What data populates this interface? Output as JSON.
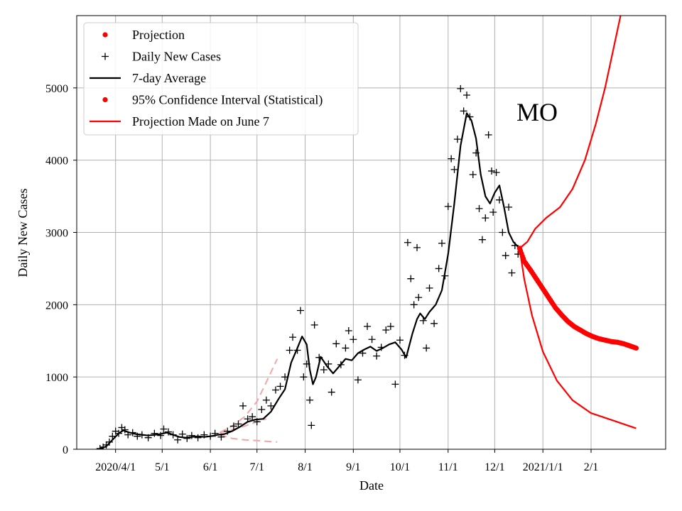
{
  "chart_data": {
    "type": "line",
    "title": "",
    "annotation": "MO",
    "xlabel": "Date",
    "ylabel": "Daily New Cases",
    "x_ticks": [
      {
        "date": "2020-04-01",
        "label": "2020/4/1"
      },
      {
        "date": "2020-05-01",
        "label": "5/1"
      },
      {
        "date": "2020-06-01",
        "label": "6/1"
      },
      {
        "date": "2020-07-01",
        "label": "7/1"
      },
      {
        "date": "2020-08-01",
        "label": "8/1"
      },
      {
        "date": "2020-09-01",
        "label": "9/1"
      },
      {
        "date": "2020-10-01",
        "label": "10/1"
      },
      {
        "date": "2020-11-01",
        "label": "11/1"
      },
      {
        "date": "2020-12-01",
        "label": "12/1"
      },
      {
        "date": "2021-01-01",
        "label": "2021/1/1"
      },
      {
        "date": "2021-02-01",
        "label": "2/1"
      }
    ],
    "xlim": [
      "2020-03-07",
      "2021-03-21"
    ],
    "ylim": [
      0,
      6000
    ],
    "y_ticks": [
      0,
      1000,
      2000,
      3000,
      4000,
      5000
    ],
    "grid": true,
    "legend_position": "top-left",
    "legend": [
      {
        "label": "Projection",
        "marker": "dot",
        "color": "#ff0000"
      },
      {
        "label": "Daily New Cases",
        "marker": "plus",
        "color": "#000000"
      },
      {
        "label": "7-day Average",
        "marker": "line",
        "color": "#000000"
      },
      {
        "label": "95% Confidence Interval (Statistical)",
        "marker": "dot",
        "color": "#ff0000"
      },
      {
        "label": "Projection Made on June 7",
        "marker": "line",
        "color": "#ff0000"
      }
    ],
    "series": [
      {
        "name": "Daily New Cases",
        "style": "plus",
        "color": "#000000",
        "points": [
          [
            "2020-03-22",
            10
          ],
          [
            "2020-03-24",
            30
          ],
          [
            "2020-03-26",
            60
          ],
          [
            "2020-03-28",
            100
          ],
          [
            "2020-03-30",
            180
          ],
          [
            "2020-04-01",
            250
          ],
          [
            "2020-04-03",
            220
          ],
          [
            "2020-04-05",
            300
          ],
          [
            "2020-04-07",
            270
          ],
          [
            "2020-04-09",
            200
          ],
          [
            "2020-04-12",
            230
          ],
          [
            "2020-04-15",
            180
          ],
          [
            "2020-04-18",
            200
          ],
          [
            "2020-04-22",
            160
          ],
          [
            "2020-04-26",
            220
          ],
          [
            "2020-04-30",
            190
          ],
          [
            "2020-05-02",
            280
          ],
          [
            "2020-05-05",
            240
          ],
          [
            "2020-05-08",
            200
          ],
          [
            "2020-05-11",
            130
          ],
          [
            "2020-05-14",
            210
          ],
          [
            "2020-05-17",
            150
          ],
          [
            "2020-05-20",
            190
          ],
          [
            "2020-05-24",
            160
          ],
          [
            "2020-05-28",
            200
          ],
          [
            "2020-06-01",
            180
          ],
          [
            "2020-06-04",
            220
          ],
          [
            "2020-06-08",
            170
          ],
          [
            "2020-06-12",
            250
          ],
          [
            "2020-06-16",
            320
          ],
          [
            "2020-06-19",
            350
          ],
          [
            "2020-06-22",
            600
          ],
          [
            "2020-06-25",
            420
          ],
          [
            "2020-06-28",
            450
          ],
          [
            "2020-07-01",
            380
          ],
          [
            "2020-07-04",
            550
          ],
          [
            "2020-07-07",
            680
          ],
          [
            "2020-07-10",
            600
          ],
          [
            "2020-07-13",
            820
          ],
          [
            "2020-07-16",
            870
          ],
          [
            "2020-07-19",
            1000
          ],
          [
            "2020-07-22",
            1370
          ],
          [
            "2020-07-24",
            1550
          ],
          [
            "2020-07-27",
            1370
          ],
          [
            "2020-07-29",
            1920
          ],
          [
            "2020-07-31",
            1000
          ],
          [
            "2020-08-02",
            1180
          ],
          [
            "2020-08-04",
            680
          ],
          [
            "2020-08-05",
            330
          ],
          [
            "2020-08-07",
            1720
          ],
          [
            "2020-08-10",
            1270
          ],
          [
            "2020-08-13",
            1100
          ],
          [
            "2020-08-16",
            1180
          ],
          [
            "2020-08-18",
            790
          ],
          [
            "2020-08-21",
            1460
          ],
          [
            "2020-08-24",
            1170
          ],
          [
            "2020-08-27",
            1400
          ],
          [
            "2020-08-29",
            1640
          ],
          [
            "2020-09-01",
            1520
          ],
          [
            "2020-09-04",
            960
          ],
          [
            "2020-09-07",
            1330
          ],
          [
            "2020-09-10",
            1700
          ],
          [
            "2020-09-13",
            1520
          ],
          [
            "2020-09-16",
            1290
          ],
          [
            "2020-09-19",
            1410
          ],
          [
            "2020-09-22",
            1650
          ],
          [
            "2020-09-25",
            1700
          ],
          [
            "2020-09-28",
            900
          ],
          [
            "2020-10-01",
            1510
          ],
          [
            "2020-10-04",
            1300
          ],
          [
            "2020-10-06",
            2860
          ],
          [
            "2020-10-08",
            2360
          ],
          [
            "2020-10-10",
            2000
          ],
          [
            "2020-10-12",
            2790
          ],
          [
            "2020-10-13",
            2100
          ],
          [
            "2020-10-16",
            1780
          ],
          [
            "2020-10-18",
            1400
          ],
          [
            "2020-10-20",
            2230
          ],
          [
            "2020-10-23",
            1740
          ],
          [
            "2020-10-26",
            2500
          ],
          [
            "2020-10-28",
            2850
          ],
          [
            "2020-10-30",
            2400
          ],
          [
            "2020-11-01",
            3360
          ],
          [
            "2020-11-03",
            4020
          ],
          [
            "2020-11-05",
            3870
          ],
          [
            "2020-11-07",
            4290
          ],
          [
            "2020-11-09",
            4990
          ],
          [
            "2020-11-11",
            4680
          ],
          [
            "2020-11-13",
            4900
          ],
          [
            "2020-11-15",
            4600
          ],
          [
            "2020-11-17",
            3800
          ],
          [
            "2020-11-19",
            4100
          ],
          [
            "2020-11-21",
            3330
          ],
          [
            "2020-11-23",
            2900
          ],
          [
            "2020-11-25",
            3200
          ],
          [
            "2020-11-27",
            4350
          ],
          [
            "2020-11-29",
            3850
          ],
          [
            "2020-11-30",
            3280
          ],
          [
            "2020-12-02",
            3830
          ],
          [
            "2020-12-04",
            3450
          ],
          [
            "2020-12-06",
            3000
          ],
          [
            "2020-12-08",
            2680
          ],
          [
            "2020-12-10",
            3350
          ],
          [
            "2020-12-12",
            2440
          ],
          [
            "2020-12-14",
            2820
          ],
          [
            "2020-12-16",
            2700
          ]
        ]
      },
      {
        "name": "7-day Average",
        "style": "line",
        "color": "#000000",
        "points": [
          [
            "2020-03-22",
            5
          ],
          [
            "2020-03-26",
            40
          ],
          [
            "2020-03-30",
            130
          ],
          [
            "2020-04-03",
            220
          ],
          [
            "2020-04-06",
            260
          ],
          [
            "2020-04-10",
            230
          ],
          [
            "2020-04-14",
            210
          ],
          [
            "2020-04-18",
            200
          ],
          [
            "2020-04-22",
            190
          ],
          [
            "2020-04-26",
            200
          ],
          [
            "2020-04-30",
            210
          ],
          [
            "2020-05-04",
            230
          ],
          [
            "2020-05-08",
            200
          ],
          [
            "2020-05-12",
            170
          ],
          [
            "2020-05-16",
            160
          ],
          [
            "2020-05-20",
            170
          ],
          [
            "2020-05-24",
            180
          ],
          [
            "2020-05-28",
            170
          ],
          [
            "2020-06-01",
            180
          ],
          [
            "2020-06-06",
            200
          ],
          [
            "2020-06-10",
            210
          ],
          [
            "2020-06-15",
            250
          ],
          [
            "2020-06-20",
            310
          ],
          [
            "2020-06-25",
            380
          ],
          [
            "2020-06-30",
            410
          ],
          [
            "2020-07-05",
            420
          ],
          [
            "2020-07-10",
            520
          ],
          [
            "2020-07-15",
            700
          ],
          [
            "2020-07-19",
            830
          ],
          [
            "2020-07-23",
            1200
          ],
          [
            "2020-07-27",
            1400
          ],
          [
            "2020-07-30",
            1560
          ],
          [
            "2020-08-02",
            1450
          ],
          [
            "2020-08-04",
            1100
          ],
          [
            "2020-08-06",
            900
          ],
          [
            "2020-08-08",
            1000
          ],
          [
            "2020-08-11",
            1280
          ],
          [
            "2020-08-15",
            1150
          ],
          [
            "2020-08-19",
            1050
          ],
          [
            "2020-08-23",
            1150
          ],
          [
            "2020-08-27",
            1250
          ],
          [
            "2020-08-31",
            1230
          ],
          [
            "2020-09-04",
            1330
          ],
          [
            "2020-09-08",
            1380
          ],
          [
            "2020-09-12",
            1420
          ],
          [
            "2020-09-16",
            1360
          ],
          [
            "2020-09-20",
            1400
          ],
          [
            "2020-09-24",
            1450
          ],
          [
            "2020-09-28",
            1480
          ],
          [
            "2020-10-02",
            1380
          ],
          [
            "2020-10-05",
            1270
          ],
          [
            "2020-10-09",
            1600
          ],
          [
            "2020-10-12",
            1800
          ],
          [
            "2020-10-14",
            1880
          ],
          [
            "2020-10-17",
            1800
          ],
          [
            "2020-10-20",
            1900
          ],
          [
            "2020-10-24",
            2000
          ],
          [
            "2020-10-28",
            2200
          ],
          [
            "2020-11-01",
            2700
          ],
          [
            "2020-11-05",
            3400
          ],
          [
            "2020-11-09",
            4200
          ],
          [
            "2020-11-13",
            4650
          ],
          [
            "2020-11-16",
            4550
          ],
          [
            "2020-11-19",
            4300
          ],
          [
            "2020-11-22",
            3800
          ],
          [
            "2020-11-25",
            3500
          ],
          [
            "2020-11-28",
            3400
          ],
          [
            "2020-12-01",
            3550
          ],
          [
            "2020-12-04",
            3650
          ],
          [
            "2020-12-07",
            3350
          ],
          [
            "2020-12-10",
            3000
          ],
          [
            "2020-12-13",
            2870
          ],
          [
            "2020-12-16",
            2800
          ]
        ]
      },
      {
        "name": "Projection",
        "style": "dots",
        "color": "#ff0000",
        "points": [
          [
            "2020-12-17",
            2780
          ],
          [
            "2020-12-20",
            2600
          ],
          [
            "2020-12-24",
            2480
          ],
          [
            "2020-12-28",
            2350
          ],
          [
            "2021-01-01",
            2220
          ],
          [
            "2021-01-05",
            2090
          ],
          [
            "2021-01-09",
            1960
          ],
          [
            "2021-01-13",
            1860
          ],
          [
            "2021-01-17",
            1770
          ],
          [
            "2021-01-21",
            1700
          ],
          [
            "2021-01-25",
            1650
          ],
          [
            "2021-01-29",
            1600
          ],
          [
            "2021-02-02",
            1560
          ],
          [
            "2021-02-06",
            1530
          ],
          [
            "2021-02-10",
            1510
          ],
          [
            "2021-02-14",
            1490
          ],
          [
            "2021-02-18",
            1480
          ],
          [
            "2021-02-22",
            1460
          ],
          [
            "2021-02-26",
            1430
          ],
          [
            "2021-03-02",
            1400
          ]
        ]
      },
      {
        "name": "95% Confidence Interval (Statistical) upper",
        "style": "line",
        "color": "#ff0000",
        "points": [
          [
            "2020-12-17",
            2780
          ],
          [
            "2020-12-22",
            2870
          ],
          [
            "2020-12-27",
            3050
          ],
          [
            "2021-01-03",
            3200
          ],
          [
            "2021-01-12",
            3350
          ],
          [
            "2021-01-20",
            3600
          ],
          [
            "2021-01-28",
            4000
          ],
          [
            "2021-02-04",
            4500
          ],
          [
            "2021-02-10",
            5000
          ],
          [
            "2021-02-16",
            5600
          ],
          [
            "2021-02-22",
            6200
          ]
        ]
      },
      {
        "name": "95% Confidence Interval (Statistical) lower",
        "style": "line",
        "color": "#ff0000",
        "points": [
          [
            "2020-12-17",
            2780
          ],
          [
            "2020-12-20",
            2350
          ],
          [
            "2020-12-25",
            1850
          ],
          [
            "2021-01-01",
            1350
          ],
          [
            "2021-01-10",
            950
          ],
          [
            "2021-01-20",
            680
          ],
          [
            "2021-02-01",
            500
          ],
          [
            "2021-02-15",
            400
          ],
          [
            "2021-03-02",
            290
          ]
        ]
      },
      {
        "name": "Projection Made on June 7 upper",
        "style": "dashed",
        "color": "#f4a6a6",
        "points": [
          [
            "2020-06-07",
            230
          ],
          [
            "2020-06-15",
            320
          ],
          [
            "2020-06-23",
            450
          ],
          [
            "2020-07-01",
            660
          ],
          [
            "2020-07-07",
            930
          ],
          [
            "2020-07-14",
            1250
          ]
        ]
      },
      {
        "name": "Projection Made on June 7 center",
        "style": "dashed",
        "color": "#f4a6a6",
        "points": [
          [
            "2020-06-07",
            230
          ],
          [
            "2020-06-15",
            270
          ],
          [
            "2020-06-23",
            320
          ],
          [
            "2020-07-01",
            380
          ],
          [
            "2020-07-07",
            420
          ]
        ]
      },
      {
        "name": "Projection Made on June 7 lower",
        "style": "dashed",
        "color": "#f4a6a6",
        "points": [
          [
            "2020-06-07",
            200
          ],
          [
            "2020-06-15",
            150
          ],
          [
            "2020-06-23",
            130
          ],
          [
            "2020-07-01",
            120
          ],
          [
            "2020-07-07",
            110
          ],
          [
            "2020-07-14",
            100
          ]
        ]
      }
    ]
  }
}
